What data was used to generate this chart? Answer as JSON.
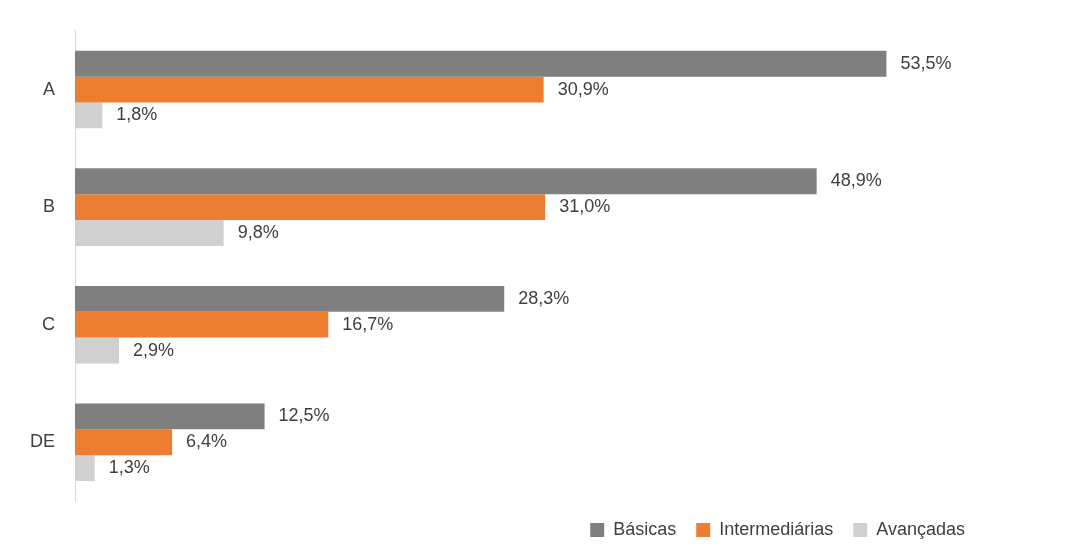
{
  "chart_data": {
    "type": "bar",
    "orientation": "horizontal",
    "categories": [
      "A",
      "B",
      "C",
      "DE"
    ],
    "series": [
      {
        "name": "Básicas",
        "color": "#7f7f7f",
        "values": [
          53.5,
          48.9,
          28.3,
          12.5
        ],
        "value_labels": [
          "53,5%",
          "48,9%",
          "28,3%",
          "12,5%"
        ]
      },
      {
        "name": "Intermediárias",
        "color": "#ed7d31",
        "values": [
          30.9,
          31.0,
          16.7,
          6.4
        ],
        "value_labels": [
          "30,9%",
          "31,0%",
          "16,7%",
          "6,4%"
        ]
      },
      {
        "name": "Avançadas",
        "color": "#d0d0d0",
        "values": [
          1.8,
          9.8,
          2.9,
          1.3
        ],
        "value_labels": [
          "1,8%",
          "9,8%",
          "2,9%",
          "1,3%"
        ]
      }
    ],
    "legend": "bottom right",
    "tick_labels": "y"
  }
}
